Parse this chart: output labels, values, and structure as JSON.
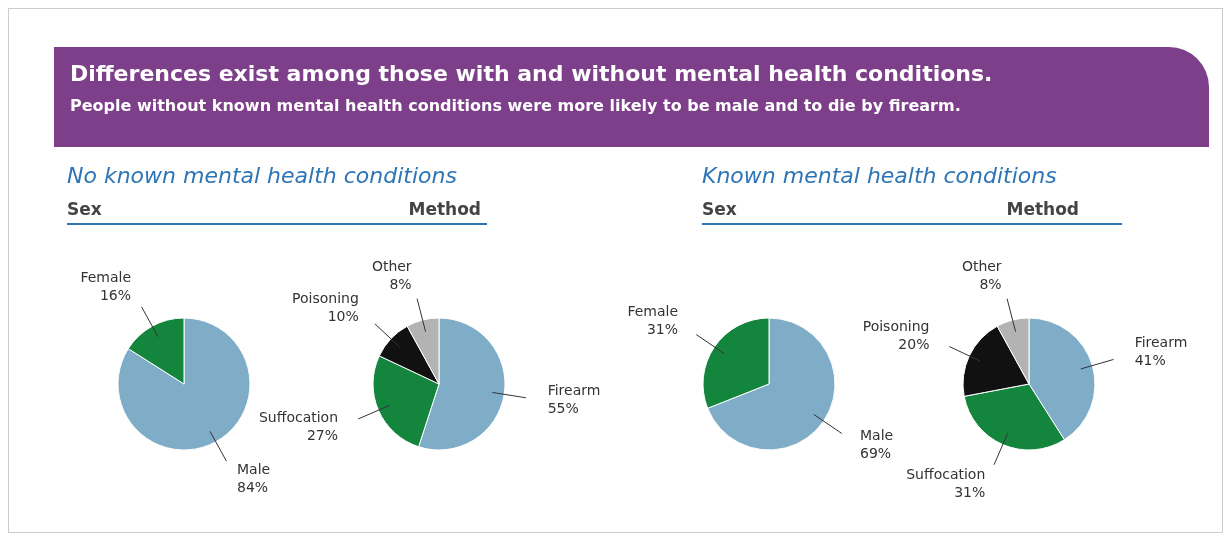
{
  "chart_data": [
    {
      "type": "other",
      "title": "Differences exist among those with and without mental health conditions.",
      "subtitle": "People without known mental health conditions were more likely to be male and to die by firearm."
    },
    {
      "type": "pie",
      "title": "No known mental health conditions",
      "subtitle": "Sex",
      "categories": [
        "Male",
        "Female"
      ],
      "values": [
        84,
        16
      ],
      "colors": [
        "#7fadc8",
        "#14853d"
      ],
      "value_labels": [
        "84%",
        "16%"
      ]
    },
    {
      "type": "pie",
      "title": "Method",
      "categories": [
        "Firearm",
        "Suffocation",
        "Poisoning",
        "Other"
      ],
      "values": [
        55,
        27,
        10,
        8
      ],
      "colors": [
        "#7fadc8",
        "#14853d",
        "#111111",
        "#b3b3b3"
      ],
      "value_labels": [
        "55%",
        "27%",
        "10%",
        "8%"
      ]
    },
    {
      "type": "pie",
      "title": "Known mental health conditions",
      "subtitle": "Sex",
      "categories": [
        "Male",
        "Female"
      ],
      "values": [
        69,
        31
      ],
      "colors": [
        "#7fadc8",
        "#14853d"
      ],
      "value_labels": [
        "69%",
        "31%"
      ]
    },
    {
      "type": "pie",
      "title": "Method",
      "categories": [
        "Firearm",
        "Suffocation",
        "Poisoning",
        "Other"
      ],
      "values": [
        41,
        31,
        20,
        8
      ],
      "colors": [
        "#7fadc8",
        "#14853d",
        "#111111",
        "#b3b3b3"
      ],
      "value_labels": [
        "41%",
        "31%",
        "20%",
        "8%"
      ]
    }
  ]
}
